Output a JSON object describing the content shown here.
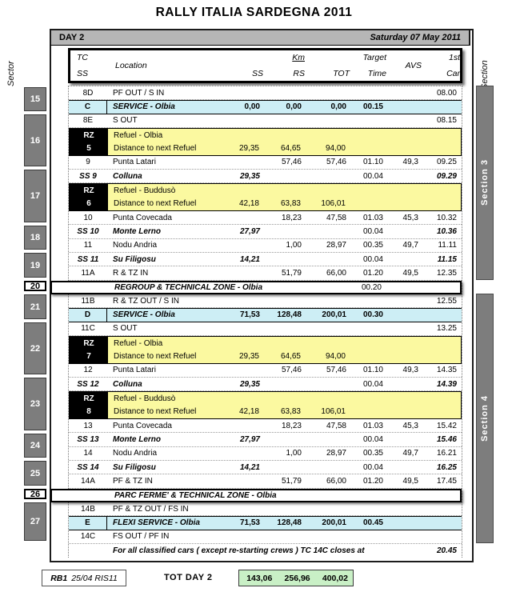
{
  "title": "RALLY ITALIA SARDEGNA 2011",
  "day_bar": {
    "day": "DAY 2",
    "date": "Saturday 07 May 2011"
  },
  "axis_labels": {
    "left": "Sector",
    "right": "Section"
  },
  "header": {
    "tc": "TC",
    "ss_sub": "SS",
    "location": "Location",
    "ss": "SS",
    "km": "Km",
    "rs": "RS",
    "tot": "TOT",
    "target": "Target",
    "time": "Time",
    "avs": "AVS",
    "first": "1st",
    "car": "Car"
  },
  "rows": [
    {
      "type": "tc",
      "tc": "8D",
      "loc": "PF OUT / S IN",
      "ss": "",
      "rs": "",
      "tot": "",
      "time": "",
      "avs": "",
      "car": "08.00"
    },
    {
      "type": "service",
      "tc": "C",
      "loc": "SERVICE - Olbia",
      "ss": "0,00",
      "rs": "0,00",
      "tot": "0,00",
      "time": "00.15",
      "avs": "",
      "car": ""
    },
    {
      "type": "tc",
      "tc": "8E",
      "loc": "S OUT",
      "ss": "",
      "rs": "",
      "tot": "",
      "time": "",
      "avs": "",
      "car": "08.15"
    },
    {
      "type": "refuel",
      "rz": "RZ",
      "num": "5",
      "loc1": "Refuel - Olbia",
      "loc2": "Distance to next Refuel",
      "ss": "29,35",
      "rs": "64,65",
      "tot": "94,00"
    },
    {
      "type": "tc",
      "tc": "9",
      "loc": "Punta Latari",
      "ss": "",
      "rs": "57,46",
      "tot": "57,46",
      "time": "01.10",
      "avs": "49,3",
      "car": "09.25"
    },
    {
      "type": "ss",
      "tc": "SS 9",
      "loc": "Colluna",
      "ss": "29,35",
      "rs": "",
      "tot": "",
      "time": "00.04",
      "avs": "",
      "car": "09.29"
    },
    {
      "type": "refuel",
      "rz": "RZ",
      "num": "6",
      "loc1": "Refuel - Buddusò",
      "loc2": "Distance to next Refuel",
      "ss": "42,18",
      "rs": "63,83",
      "tot": "106,01"
    },
    {
      "type": "tc",
      "tc": "10",
      "loc": "Punta Covecada",
      "ss": "",
      "rs": "18,23",
      "tot": "47,58",
      "time": "01.03",
      "avs": "45,3",
      "car": "10.32"
    },
    {
      "type": "ss",
      "tc": "SS 10",
      "loc": "Monte Lerno",
      "ss": "27,97",
      "rs": "",
      "tot": "",
      "time": "00.04",
      "avs": "",
      "car": "10.36"
    },
    {
      "type": "tc",
      "tc": "11",
      "loc": "Nodu Andria",
      "ss": "",
      "rs": "1,00",
      "tot": "28,97",
      "time": "00.35",
      "avs": "49,7",
      "car": "11.11"
    },
    {
      "type": "ss",
      "tc": "SS 11",
      "loc": "Su Filigosu",
      "ss": "14,21",
      "rs": "",
      "tot": "",
      "time": "00.04",
      "avs": "",
      "car": "11.15"
    },
    {
      "type": "tc",
      "tc": "11A",
      "loc": "R & TZ IN",
      "ss": "",
      "rs": "51,79",
      "tot": "66,00",
      "time": "01.20",
      "avs": "49,5",
      "car": "12.35"
    },
    {
      "type": "zone",
      "loc": "REGROUP & TECHNICAL ZONE - Olbia",
      "time": "00.20",
      "car": ""
    },
    {
      "type": "tc",
      "tc": "11B",
      "loc": "R & TZ OUT / S IN",
      "ss": "",
      "rs": "",
      "tot": "",
      "time": "",
      "avs": "",
      "car": "12.55"
    },
    {
      "type": "service",
      "tc": "D",
      "loc": "SERVICE - Olbia",
      "ss": "71,53",
      "rs": "128,48",
      "tot": "200,01",
      "time": "00.30",
      "avs": "",
      "car": ""
    },
    {
      "type": "tc",
      "tc": "11C",
      "loc": "S OUT",
      "ss": "",
      "rs": "",
      "tot": "",
      "time": "",
      "avs": "",
      "car": "13.25"
    },
    {
      "type": "refuel",
      "rz": "RZ",
      "num": "7",
      "loc1": "Refuel - Olbia",
      "loc2": "Distance to next Refuel",
      "ss": "29,35",
      "rs": "64,65",
      "tot": "94,00"
    },
    {
      "type": "tc",
      "tc": "12",
      "loc": "Punta Latari",
      "ss": "",
      "rs": "57,46",
      "tot": "57,46",
      "time": "01.10",
      "avs": "49,3",
      "car": "14.35"
    },
    {
      "type": "ss",
      "tc": "SS 12",
      "loc": "Colluna",
      "ss": "29,35",
      "rs": "",
      "tot": "",
      "time": "00.04",
      "avs": "",
      "car": "14.39"
    },
    {
      "type": "refuel",
      "rz": "RZ",
      "num": "8",
      "loc1": "Refuel - Buddusò",
      "loc2": "Distance to next Refuel",
      "ss": "42,18",
      "rs": "63,83",
      "tot": "106,01"
    },
    {
      "type": "tc",
      "tc": "13",
      "loc": "Punta Covecada",
      "ss": "",
      "rs": "18,23",
      "tot": "47,58",
      "time": "01.03",
      "avs": "45,3",
      "car": "15.42"
    },
    {
      "type": "ss",
      "tc": "SS 13",
      "loc": "Monte Lerno",
      "ss": "27,97",
      "rs": "",
      "tot": "",
      "time": "00.04",
      "avs": "",
      "car": "15.46"
    },
    {
      "type": "tc",
      "tc": "14",
      "loc": "Nodu Andria",
      "ss": "",
      "rs": "1,00",
      "tot": "28,97",
      "time": "00.35",
      "avs": "49,7",
      "car": "16.21"
    },
    {
      "type": "ss",
      "tc": "SS 14",
      "loc": "Su Filigosu",
      "ss": "14,21",
      "rs": "",
      "tot": "",
      "time": "00.04",
      "avs": "",
      "car": "16.25"
    },
    {
      "type": "tc",
      "tc": "14A",
      "loc": "PF & TZ IN",
      "ss": "",
      "rs": "51,79",
      "tot": "66,00",
      "time": "01.20",
      "avs": "49,5",
      "car": "17.45"
    },
    {
      "type": "zone",
      "loc": "PARC FERME' & TECHNICAL ZONE - Olbia",
      "time": "",
      "car": ""
    },
    {
      "type": "tc",
      "tc": "14B",
      "loc": "PF & TZ OUT / FS IN",
      "ss": "",
      "rs": "",
      "tot": "",
      "time": "",
      "avs": "",
      "car": ""
    },
    {
      "type": "service",
      "tc": "E",
      "loc": "FLEXI SERVICE - Olbia",
      "ss": "71,53",
      "rs": "128,48",
      "tot": "200,01",
      "time": "00.45",
      "avs": "",
      "car": ""
    },
    {
      "type": "tc",
      "tc": "14C",
      "loc": "FS OUT / PF IN",
      "ss": "",
      "rs": "",
      "tot": "",
      "time": "",
      "avs": "",
      "car": ""
    },
    {
      "type": "note",
      "loc": "For all classified cars ( except re-starting crews ) TC 14C closes at",
      "car": "20.45"
    }
  ],
  "sectors": [
    {
      "label": "15",
      "start": 0,
      "end": 1,
      "style": "grey"
    },
    {
      "label": "16",
      "start": 2,
      "end": 5,
      "style": "grey"
    },
    {
      "label": "17",
      "start": 6,
      "end": 9,
      "style": "grey"
    },
    {
      "label": "18",
      "start": 10,
      "end": 11,
      "style": "grey"
    },
    {
      "label": "19",
      "start": 12,
      "end": 13,
      "style": "grey"
    },
    {
      "label": "20",
      "start": 14,
      "end": 14,
      "style": "white"
    },
    {
      "label": "21",
      "start": 15,
      "end": 16,
      "style": "grey"
    },
    {
      "label": "22",
      "start": 17,
      "end": 20,
      "style": "grey"
    },
    {
      "label": "23",
      "start": 21,
      "end": 24,
      "style": "grey"
    },
    {
      "label": "24",
      "start": 25,
      "end": 26,
      "style": "grey"
    },
    {
      "label": "25",
      "start": 27,
      "end": 28,
      "style": "grey"
    },
    {
      "label": "26",
      "start": 29,
      "end": 29,
      "style": "white"
    },
    {
      "label": "27",
      "start": 30,
      "end": 32,
      "style": "grey"
    }
  ],
  "sections": [
    {
      "label": "Section 3",
      "start": 0,
      "end": 13
    },
    {
      "label": "Section 4",
      "start": 15,
      "end": 32
    }
  ],
  "footer": {
    "doc_ref_bold": "RB1",
    "doc_ref": "25/04 RIS11",
    "tot_label": "TOT DAY 2",
    "totals": [
      "143,06",
      "256,96",
      "400,02"
    ]
  },
  "colors": {
    "service_row": "#cdeef5",
    "refuel_row": "#fbf9a0",
    "sector_box": "#7d7d7d",
    "section_bar": "#7d7d7d",
    "day_bar": "#b6b6b6",
    "totals_box": "#c9f0c6"
  }
}
